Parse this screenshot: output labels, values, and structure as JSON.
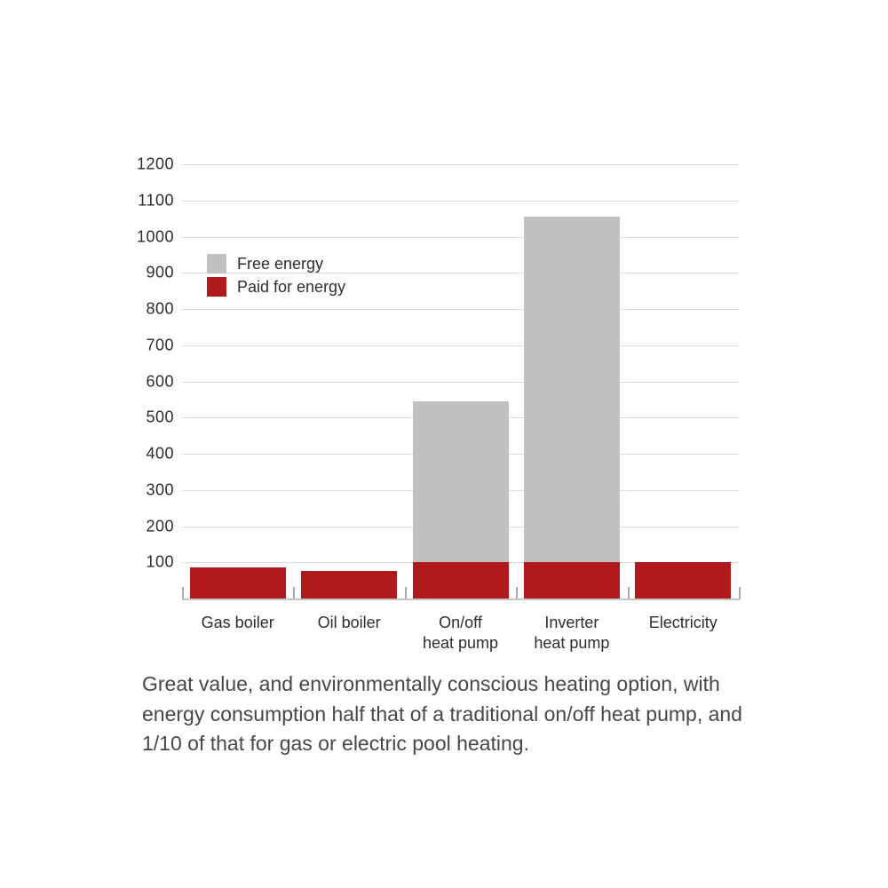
{
  "chart_data": {
    "type": "bar",
    "stacked": true,
    "title": "",
    "xlabel": "",
    "ylabel": "",
    "categories": [
      {
        "lines": [
          "Gas boiler"
        ]
      },
      {
        "lines": [
          "Oil boiler"
        ]
      },
      {
        "lines": [
          "On/off",
          "heat pump"
        ]
      },
      {
        "lines": [
          "Inverter",
          "heat pump"
        ]
      },
      {
        "lines": [
          "Electricity"
        ]
      }
    ],
    "series": [
      {
        "name": "Paid for energy",
        "color": "#b11a1c",
        "values": [
          85,
          75,
          100,
          100,
          100
        ]
      },
      {
        "name": "Free energy",
        "color": "#c1c1c1",
        "values": [
          0,
          0,
          445,
          955,
          0
        ]
      }
    ],
    "stack_totals": [
      85,
      75,
      545,
      1055,
      100
    ],
    "legend": [
      {
        "label": "Free energy",
        "color": "#c1c1c1"
      },
      {
        "label": "Paid for energy",
        "color": "#b11a1c"
      }
    ],
    "legend_position": "inside upper-left",
    "grid": true,
    "ylim": [
      0,
      1200
    ],
    "yticks": [
      100,
      200,
      300,
      400,
      500,
      600,
      700,
      800,
      900,
      1000,
      1100,
      1200
    ]
  },
  "caption": {
    "lines": [
      "Great value, and environmentally conscious heating option, with",
      "energy consumption half that of a traditional on/off heat pump, and",
      "1/10 of that for gas or electric pool heating."
    ]
  },
  "colors": {
    "background": "#ffffff",
    "gridline": "#dedede",
    "axis_line": "#c4c4c4",
    "axis_text": "#2d2d2d",
    "caption_text": "#474747",
    "paid_energy_red": "#b11a1c",
    "free_energy_gray": "#c1c1c1"
  }
}
